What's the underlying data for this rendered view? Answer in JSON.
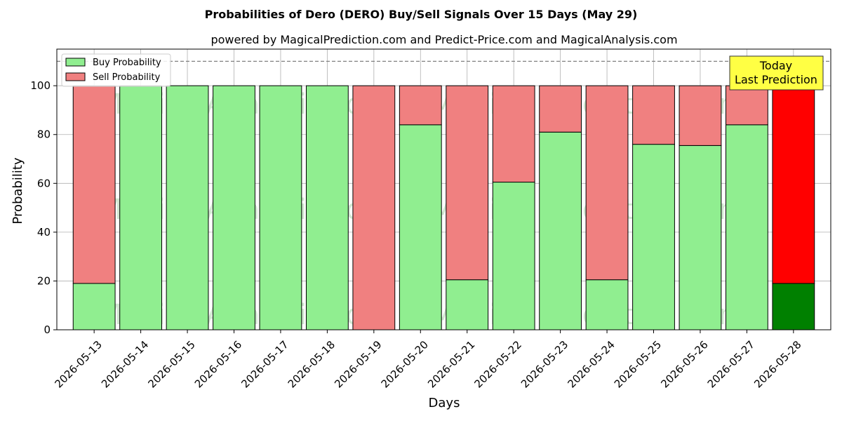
{
  "chart_data": {
    "type": "bar",
    "stacked": true,
    "title": "Probabilities of Dero (DERO) Buy/Sell Signals Over 15 Days (May 29)",
    "subtitle": "powered by MagicalPrediction.com and Predict-Price.com and MagicalAnalysis.com",
    "xlabel": "Days",
    "ylabel": "Probability",
    "ylim": [
      0,
      115
    ],
    "yticks": [
      0,
      20,
      40,
      60,
      80,
      100
    ],
    "grid": true,
    "legend_position": "top-left",
    "reference_line": {
      "y": 110,
      "style": "dashed",
      "color": "#808080"
    },
    "categories": [
      "2026-05-13",
      "2026-05-14",
      "2026-05-15",
      "2026-05-16",
      "2026-05-17",
      "2026-05-18",
      "2026-05-19",
      "2026-05-20",
      "2026-05-21",
      "2026-05-22",
      "2026-05-23",
      "2026-05-24",
      "2026-05-25",
      "2026-05-26",
      "2026-05-27",
      "2026-05-28"
    ],
    "series": [
      {
        "name": "Buy Probability",
        "color": "#90ee90",
        "highlight_color": "#008000",
        "values": [
          19,
          100,
          100,
          100,
          100,
          100,
          0,
          84,
          20.5,
          60.5,
          81,
          20.5,
          76,
          75.5,
          84,
          19
        ]
      },
      {
        "name": "Sell Probability",
        "color": "#f08080",
        "highlight_color": "#ff0000",
        "values": [
          81,
          0,
          0,
          0,
          0,
          0,
          100,
          16,
          79.5,
          39.5,
          19,
          79.5,
          24,
          24.5,
          16,
          81
        ]
      }
    ],
    "highlight_index": 15,
    "annotation": {
      "lines": [
        "Today",
        "Last Prediction"
      ],
      "bg_color": "#ffff44"
    },
    "watermarks": [
      "MagicalAnalysis.com",
      "MagicalPrediction.com"
    ]
  }
}
